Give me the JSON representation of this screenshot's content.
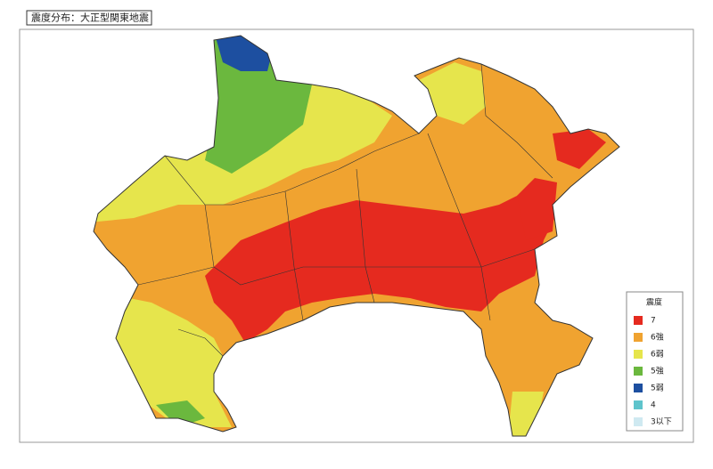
{
  "title": "震度分布：大正型関東地震",
  "legend": {
    "title": "震度",
    "items": [
      {
        "label": "7",
        "color": "#e52a1f"
      },
      {
        "label": "6強",
        "color": "#f0a330"
      },
      {
        "label": "6弱",
        "color": "#e6e54c"
      },
      {
        "label": "5強",
        "color": "#6bb83e"
      },
      {
        "label": "5弱",
        "color": "#1d4fa0"
      },
      {
        "label": "4",
        "color": "#5ec4cc"
      },
      {
        "label": "3以下",
        "color": "#cfe9f1"
      }
    ]
  }
}
